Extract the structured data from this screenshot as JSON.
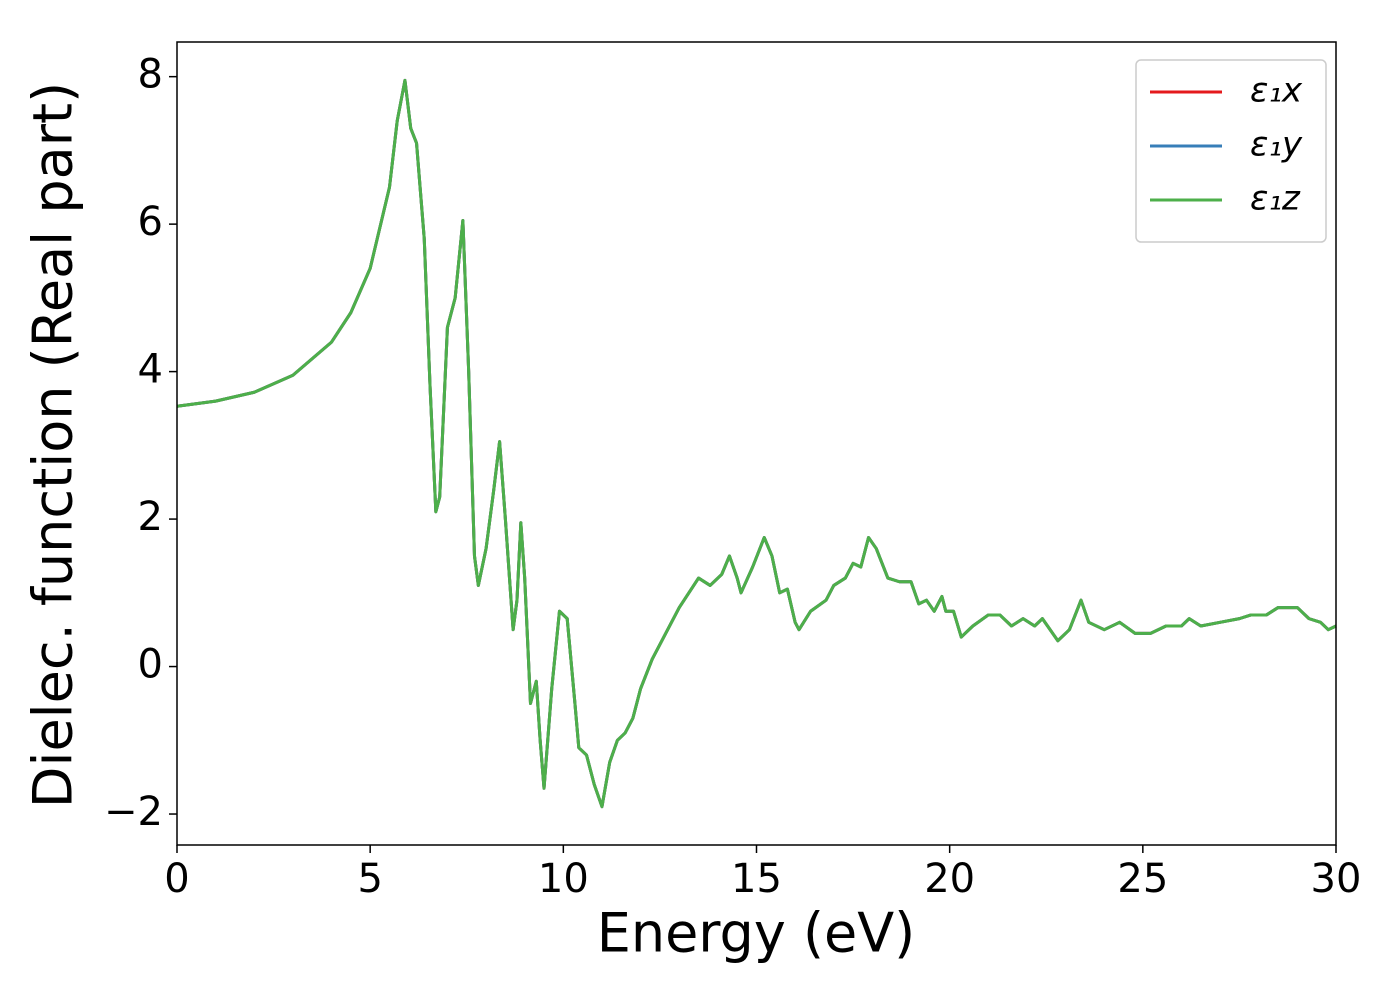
{
  "chart_data": {
    "type": "line",
    "xlabel": "Energy (eV)",
    "ylabel": "Dielec. function (Real part)",
    "x": [
      0,
      1,
      2,
      3,
      4,
      4.5,
      5,
      5.5,
      5.7,
      5.9,
      6.05,
      6.2,
      6.4,
      6.55,
      6.7,
      6.8,
      7.0,
      7.2,
      7.4,
      7.55,
      7.7,
      7.8,
      8.0,
      8.2,
      8.35,
      8.5,
      8.7,
      8.8,
      8.9,
      9.0,
      9.15,
      9.3,
      9.4,
      9.5,
      9.7,
      9.9,
      10.1,
      10.3,
      10.4,
      10.6,
      10.8,
      11.0,
      11.2,
      11.4,
      11.6,
      11.8,
      12.0,
      12.3,
      12.6,
      13.0,
      13.5,
      13.8,
      14.1,
      14.3,
      14.5,
      14.6,
      14.9,
      15.2,
      15.4,
      15.6,
      15.8,
      16.0,
      16.1,
      16.4,
      16.8,
      17.0,
      17.3,
      17.5,
      17.7,
      17.9,
      18.1,
      18.4,
      18.7,
      19.0,
      19.2,
      19.4,
      19.6,
      19.8,
      19.9,
      20.1,
      20.3,
      20.6,
      21.0,
      21.3,
      21.6,
      21.9,
      22.2,
      22.4,
      22.8,
      23.1,
      23.4,
      23.6,
      24.0,
      24.4,
      24.8,
      25.2,
      25.6,
      26.0,
      26.2,
      26.5,
      27.0,
      27.5,
      27.8,
      28.2,
      28.5,
      29.0,
      29.3,
      29.6,
      29.8,
      30.0
    ],
    "series": [
      {
        "name": "ε₁x",
        "color": "#e41a1c",
        "values": [
          3.53,
          3.6,
          3.72,
          3.95,
          4.4,
          4.8,
          5.4,
          6.5,
          7.4,
          7.95,
          7.3,
          7.1,
          5.8,
          3.8,
          2.1,
          2.3,
          4.6,
          5.0,
          6.05,
          4.0,
          1.5,
          1.1,
          1.6,
          2.4,
          3.05,
          2.0,
          0.5,
          0.9,
          1.95,
          1.2,
          -0.5,
          -0.2,
          -1.0,
          -1.65,
          -0.3,
          0.75,
          0.65,
          -0.5,
          -1.1,
          -1.2,
          -1.6,
          -1.9,
          -1.3,
          -1.0,
          -0.9,
          -0.7,
          -0.3,
          0.1,
          0.4,
          0.8,
          1.2,
          1.1,
          1.25,
          1.5,
          1.2,
          1.0,
          1.35,
          1.75,
          1.5,
          1.0,
          1.05,
          0.6,
          0.5,
          0.75,
          0.9,
          1.1,
          1.2,
          1.4,
          1.35,
          1.75,
          1.6,
          1.2,
          1.15,
          1.15,
          0.85,
          0.9,
          0.75,
          0.95,
          0.75,
          0.75,
          0.4,
          0.55,
          0.7,
          0.7,
          0.55,
          0.65,
          0.55,
          0.65,
          0.35,
          0.5,
          0.9,
          0.6,
          0.5,
          0.6,
          0.45,
          0.45,
          0.55,
          0.55,
          0.65,
          0.55,
          0.6,
          0.65,
          0.7,
          0.7,
          0.8,
          0.8,
          0.65,
          0.6,
          0.5,
          0.55
        ]
      },
      {
        "name": "ε₁y",
        "color": "#377eb8",
        "values": [
          3.53,
          3.6,
          3.72,
          3.95,
          4.4,
          4.8,
          5.4,
          6.5,
          7.4,
          7.95,
          7.3,
          7.1,
          5.8,
          3.8,
          2.1,
          2.3,
          4.6,
          5.0,
          6.05,
          4.0,
          1.5,
          1.1,
          1.6,
          2.4,
          3.05,
          2.0,
          0.5,
          0.9,
          1.95,
          1.2,
          -0.5,
          -0.2,
          -1.0,
          -1.65,
          -0.3,
          0.75,
          0.65,
          -0.5,
          -1.1,
          -1.2,
          -1.6,
          -1.9,
          -1.3,
          -1.0,
          -0.9,
          -0.7,
          -0.3,
          0.1,
          0.4,
          0.8,
          1.2,
          1.1,
          1.25,
          1.5,
          1.2,
          1.0,
          1.35,
          1.75,
          1.5,
          1.0,
          1.05,
          0.6,
          0.5,
          0.75,
          0.9,
          1.1,
          1.2,
          1.4,
          1.35,
          1.75,
          1.6,
          1.2,
          1.15,
          1.15,
          0.85,
          0.9,
          0.75,
          0.95,
          0.75,
          0.75,
          0.4,
          0.55,
          0.7,
          0.7,
          0.55,
          0.65,
          0.55,
          0.65,
          0.35,
          0.5,
          0.9,
          0.6,
          0.5,
          0.6,
          0.45,
          0.45,
          0.55,
          0.55,
          0.65,
          0.55,
          0.6,
          0.65,
          0.7,
          0.7,
          0.8,
          0.8,
          0.65,
          0.6,
          0.5,
          0.55
        ]
      },
      {
        "name": "ε₁z",
        "color": "#4daf4a",
        "values": [
          3.53,
          3.6,
          3.72,
          3.95,
          4.4,
          4.8,
          5.4,
          6.5,
          7.4,
          7.95,
          7.3,
          7.1,
          5.8,
          3.8,
          2.1,
          2.3,
          4.6,
          5.0,
          6.05,
          4.0,
          1.5,
          1.1,
          1.6,
          2.4,
          3.05,
          2.0,
          0.5,
          0.9,
          1.95,
          1.2,
          -0.5,
          -0.2,
          -1.0,
          -1.65,
          -0.3,
          0.75,
          0.65,
          -0.5,
          -1.1,
          -1.2,
          -1.6,
          -1.9,
          -1.3,
          -1.0,
          -0.9,
          -0.7,
          -0.3,
          0.1,
          0.4,
          0.8,
          1.2,
          1.1,
          1.25,
          1.5,
          1.2,
          1.0,
          1.35,
          1.75,
          1.5,
          1.0,
          1.05,
          0.6,
          0.5,
          0.75,
          0.9,
          1.1,
          1.2,
          1.4,
          1.35,
          1.75,
          1.6,
          1.2,
          1.15,
          1.15,
          0.85,
          0.9,
          0.75,
          0.95,
          0.75,
          0.75,
          0.4,
          0.55,
          0.7,
          0.7,
          0.55,
          0.65,
          0.55,
          0.65,
          0.35,
          0.5,
          0.9,
          0.6,
          0.5,
          0.6,
          0.45,
          0.45,
          0.55,
          0.55,
          0.65,
          0.55,
          0.6,
          0.65,
          0.7,
          0.7,
          0.8,
          0.8,
          0.65,
          0.6,
          0.5,
          0.55
        ]
      }
    ],
    "xlim": [
      0,
      30
    ],
    "xticks": [
      0,
      5,
      10,
      15,
      20,
      25,
      30
    ],
    "ylim": [
      -2.42,
      8.47
    ],
    "yticks": [
      {
        "value": -2,
        "label": "−2"
      },
      0,
      2,
      4,
      6,
      8
    ],
    "legend": "upper right",
    "grid": false
  }
}
